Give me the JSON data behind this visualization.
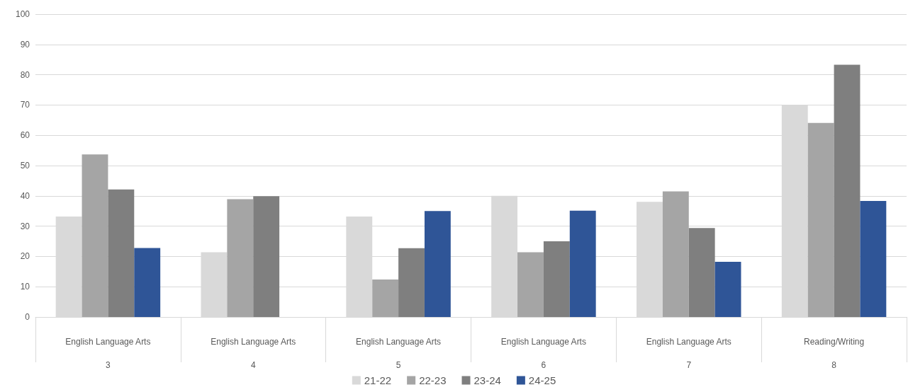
{
  "chart_data": {
    "type": "bar",
    "categories": [
      "English Language Arts\n3",
      "English Language Arts\n4",
      "English Language Arts\n5",
      "English Language Arts\n6",
      "English Language Arts\n7",
      "Reading/Writing\n8"
    ],
    "series": [
      {
        "name": "21-22",
        "color": "#d9d9d9",
        "values": [
          33.2,
          21.4,
          33.2,
          40.0,
          38.0,
          70.0
        ]
      },
      {
        "name": "22-23",
        "color": "#a5a5a5",
        "values": [
          53.7,
          38.9,
          12.4,
          21.4,
          41.5,
          64.1
        ]
      },
      {
        "name": "23-24",
        "color": "#7f7f7f",
        "values": [
          42.1,
          39.9,
          22.7,
          25.0,
          29.4,
          83.3
        ]
      },
      {
        "name": "24-25",
        "color": "#2f5597",
        "values": [
          22.8,
          null,
          35.0,
          35.1,
          18.2,
          38.3
        ]
      }
    ],
    "ylim": [
      0,
      100
    ],
    "yticks": [
      0,
      10,
      20,
      30,
      40,
      50,
      60,
      70,
      80,
      90,
      100
    ],
    "grid": "y",
    "legend": "bottom"
  }
}
